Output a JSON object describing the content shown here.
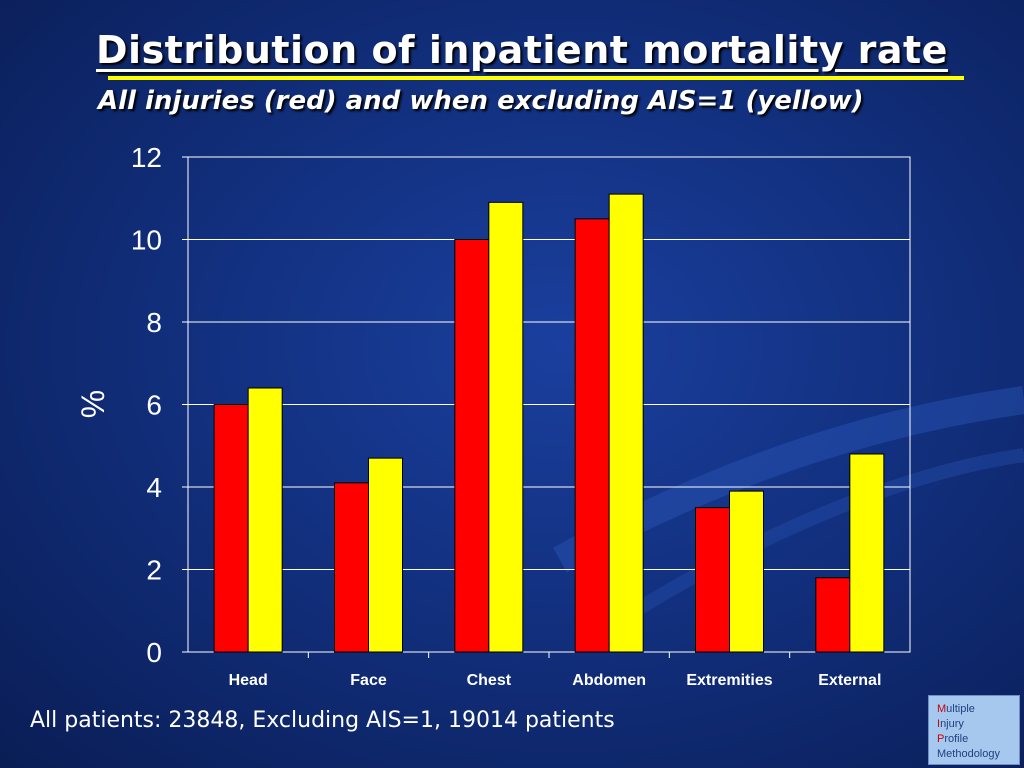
{
  "slide": {
    "title": "Distribution of inpatient mortality rate",
    "subtitle": "All injuries (red) and when excluding AIS=1 (yellow)",
    "footnote": "All patients: 23848, Excluding AIS=1, 19014 patients"
  },
  "logo": {
    "lines": [
      {
        "initial": "M",
        "rest": "ultiple"
      },
      {
        "initial": "I",
        "rest": "njury"
      },
      {
        "initial": "P",
        "rest": "rofile"
      },
      {
        "initial": "",
        "rest": "Methodology"
      }
    ]
  },
  "colors": {
    "background": "#12307f",
    "series_all": "#ff0000",
    "series_excl": "#ffff00",
    "title_rule": "#ffff00"
  },
  "chart_data": {
    "type": "bar",
    "title": "",
    "xlabel": "",
    "ylabel": "%",
    "categories": [
      "Head",
      "Face",
      "Chest",
      "Abdomen",
      "Extremities",
      "External"
    ],
    "series": [
      {
        "color": "#ff0000",
        "values": [
          6.0,
          4.1,
          10.0,
          10.5,
          3.5,
          1.8
        ]
      },
      {
        "color": "#ffff00",
        "values": [
          6.4,
          4.7,
          10.9,
          11.1,
          3.9,
          4.8
        ]
      }
    ],
    "ylim": [
      0,
      12
    ],
    "yticks": [
      0,
      2,
      4,
      6,
      8,
      10,
      12
    ],
    "grid": true,
    "legend": "none"
  }
}
